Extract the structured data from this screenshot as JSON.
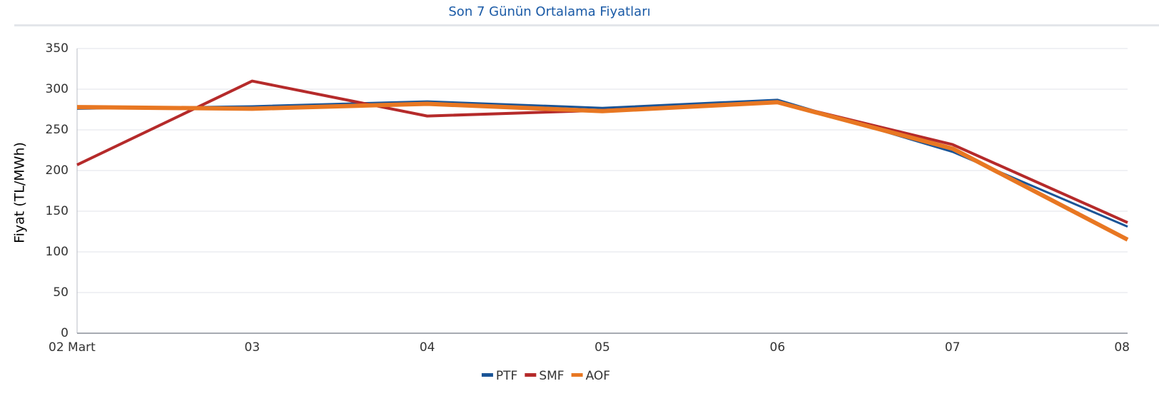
{
  "chart_data": {
    "type": "line",
    "title": "Son 7 Günün Ortalama Fiyatları",
    "y_label": "Fiyat (TL/MWh)",
    "categories": [
      "02 Mart",
      "03",
      "04",
      "05",
      "06",
      "07",
      "08"
    ],
    "series": [
      {
        "name": "PTF",
        "color": "#1a5496",
        "values": [
          276,
          279,
          285,
          277,
          287,
          223,
          131
        ]
      },
      {
        "name": "SMF",
        "color": "#b52a2a",
        "values": [
          207,
          310,
          267,
          274,
          284,
          232,
          136
        ]
      },
      {
        "name": "AOF",
        "color": "#e87722",
        "values": [
          278,
          276,
          282,
          273,
          284,
          227,
          115
        ]
      }
    ],
    "ylim": [
      0,
      350
    ],
    "yticks": [
      0,
      50,
      100,
      150,
      200,
      250,
      300,
      350
    ],
    "grid": true
  }
}
